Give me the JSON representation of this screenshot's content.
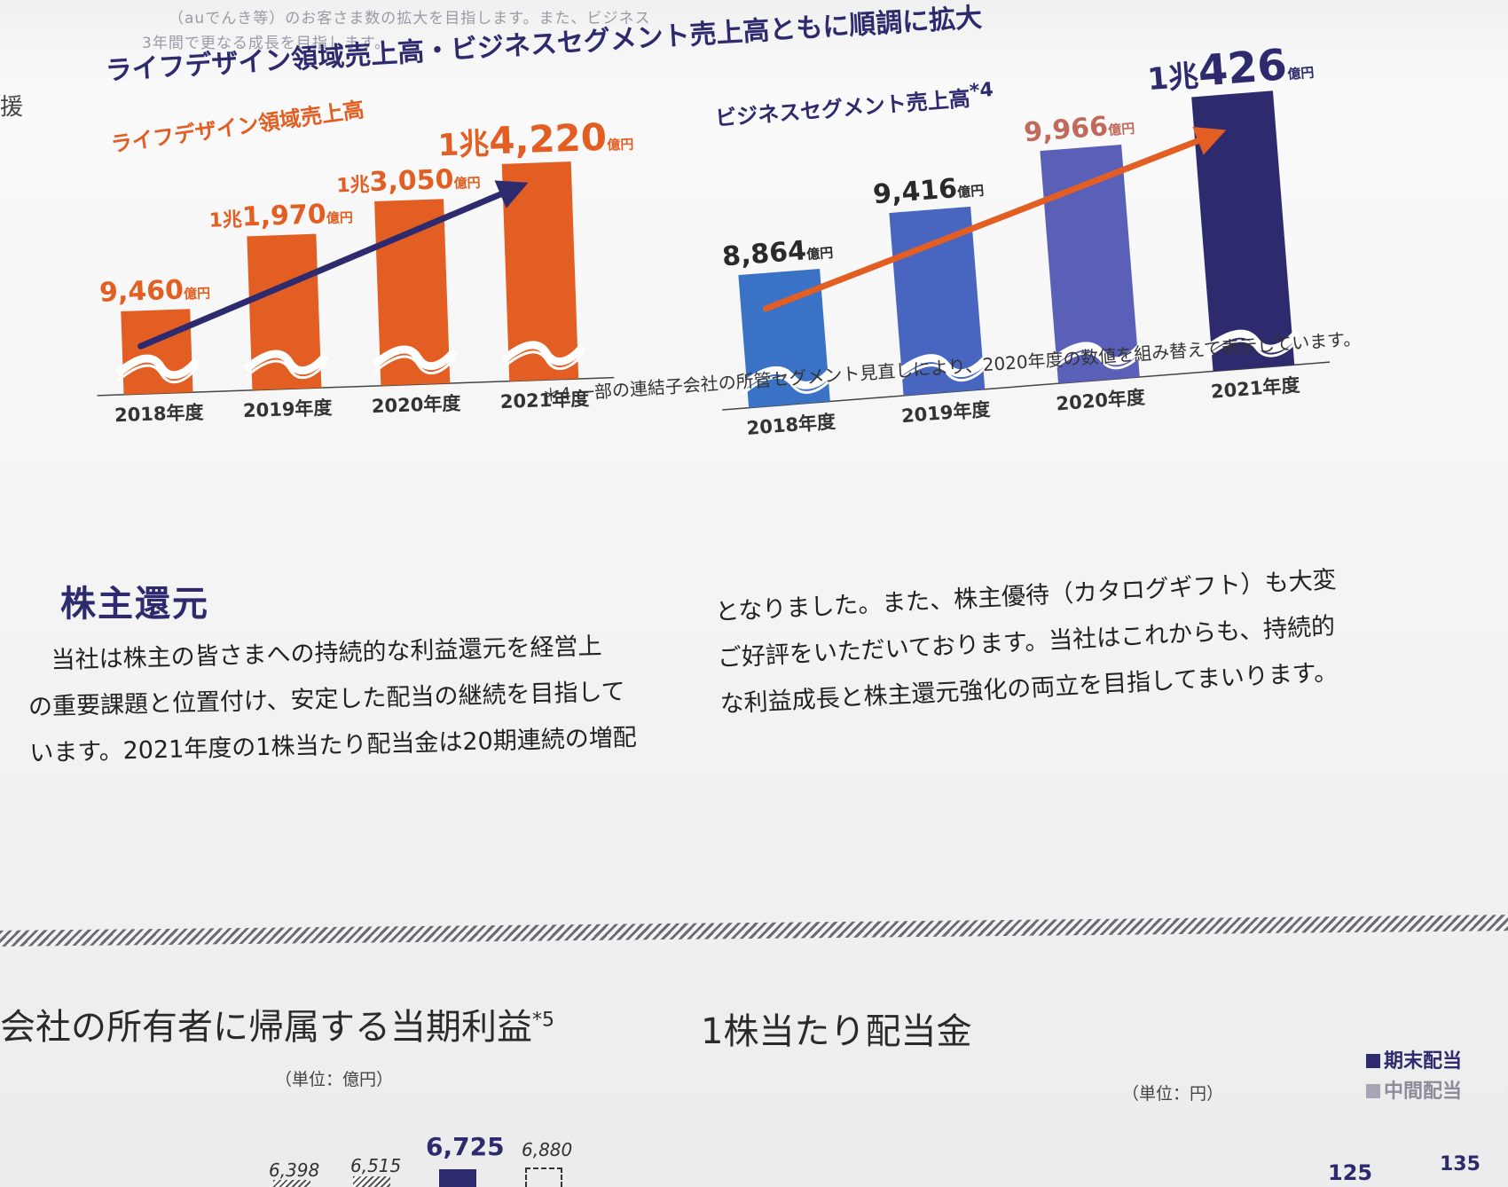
{
  "intro": {
    "line1": "（auでんき等）のお客さま数の拡大を目指します。また、ビジネス",
    "line2": "3年間で更なる成長を目指します。"
  },
  "headline": "ライフデザイン領域売上高・ビジネスセグメント売上高ともに順調に拡大",
  "margin_text": "援",
  "chart_data": [
    {
      "type": "bar",
      "title": "ライフデザイン領域売上高",
      "categories": [
        "2018年度",
        "2019年度",
        "2020年度",
        "2021年度"
      ],
      "values": [
        9460,
        11970,
        13050,
        14220
      ],
      "value_labels": [
        {
          "prefix": "",
          "number": "9,460",
          "unit": "億円"
        },
        {
          "prefix": "1兆",
          "number": "1,970",
          "unit": "億円"
        },
        {
          "prefix": "1兆",
          "number": "3,050",
          "unit": "億円"
        },
        {
          "prefix": "1兆",
          "number": "4,220",
          "unit": "億円"
        }
      ],
      "bar_color": "#e35e22",
      "arrow_color": "#2d2a6e",
      "axis_break": true
    },
    {
      "type": "bar",
      "title": "ビジネスセグメント売上高",
      "title_note": "*4",
      "categories": [
        "2018年度",
        "2019年度",
        "2020年度",
        "2021年度"
      ],
      "values": [
        8864,
        9416,
        9966,
        10426
      ],
      "value_labels": [
        {
          "prefix": "",
          "number": "8,864",
          "unit": "億円"
        },
        {
          "prefix": "",
          "number": "9,416",
          "unit": "億円"
        },
        {
          "prefix": "",
          "number": "9,966",
          "unit": "億円"
        },
        {
          "prefix": "1兆",
          "number": "426",
          "unit": "億円"
        }
      ],
      "bar_colors": [
        "#3a72c6",
        "#4866c0",
        "#5a60b8",
        "#2d2a6e"
      ],
      "arrow_color": "#e35e22",
      "axis_break": true
    }
  ],
  "footnote": "＊4 一部の連結子会社の所管セグメント見直しにより、2020年度の数値を組み替えて表示しています。",
  "shareholder": {
    "title": "株主還元",
    "left_lines": [
      "　当社は株主の皆さまへの持続的な利益還元を経営上",
      "の重要課題と位置付け、安定した配当の継続を目指して",
      "います。2021年度の1株当たり配当金は20期連続の増配"
    ],
    "right_lines": [
      "となりました。また、株主優待（カタログギフト）も大変",
      "ご好評をいただいております。当社はこれからも、持続的",
      "な利益成長と株主還元強化の両立を目指してまいります。"
    ]
  },
  "bottom": {
    "profit_title": "会社の所有者に帰属する当期利益",
    "profit_note": "*5",
    "profit_unit": "（単位：億円）",
    "profit_values": [
      "6,398",
      "6,515",
      "6,725",
      "6,880"
    ],
    "dividend_title": "1株当たり配当金",
    "dividend_unit": "（単位：円）",
    "legend": [
      "期末配当",
      "中間配当"
    ],
    "dividend_values": [
      "125",
      "135"
    ]
  }
}
